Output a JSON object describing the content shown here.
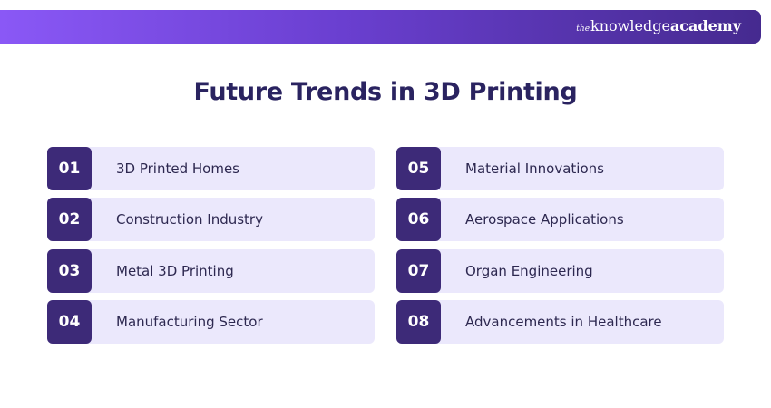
{
  "header": {
    "brand_prefix": "the",
    "brand_main": "knowledge",
    "brand_bold": "academy"
  },
  "title": "Future Trends in 3D Printing",
  "items": [
    {
      "number": "01",
      "label": "3D Printed Homes"
    },
    {
      "number": "02",
      "label": "Construction Industry"
    },
    {
      "number": "03",
      "label": "Metal 3D Printing"
    },
    {
      "number": "04",
      "label": "Manufacturing Sector"
    },
    {
      "number": "05",
      "label": "Material Innovations"
    },
    {
      "number": "06",
      "label": "Aerospace Applications"
    },
    {
      "number": "07",
      "label": "Organ Engineering"
    },
    {
      "number": "08",
      "label": "Advancements in Healthcare"
    }
  ],
  "colors": {
    "accent_dark": "#3d2a78",
    "item_background": "#ebe8fc",
    "title_color": "#2a2360",
    "bar_gradient_start": "#8a58f6",
    "bar_gradient_end": "#452a8f"
  }
}
